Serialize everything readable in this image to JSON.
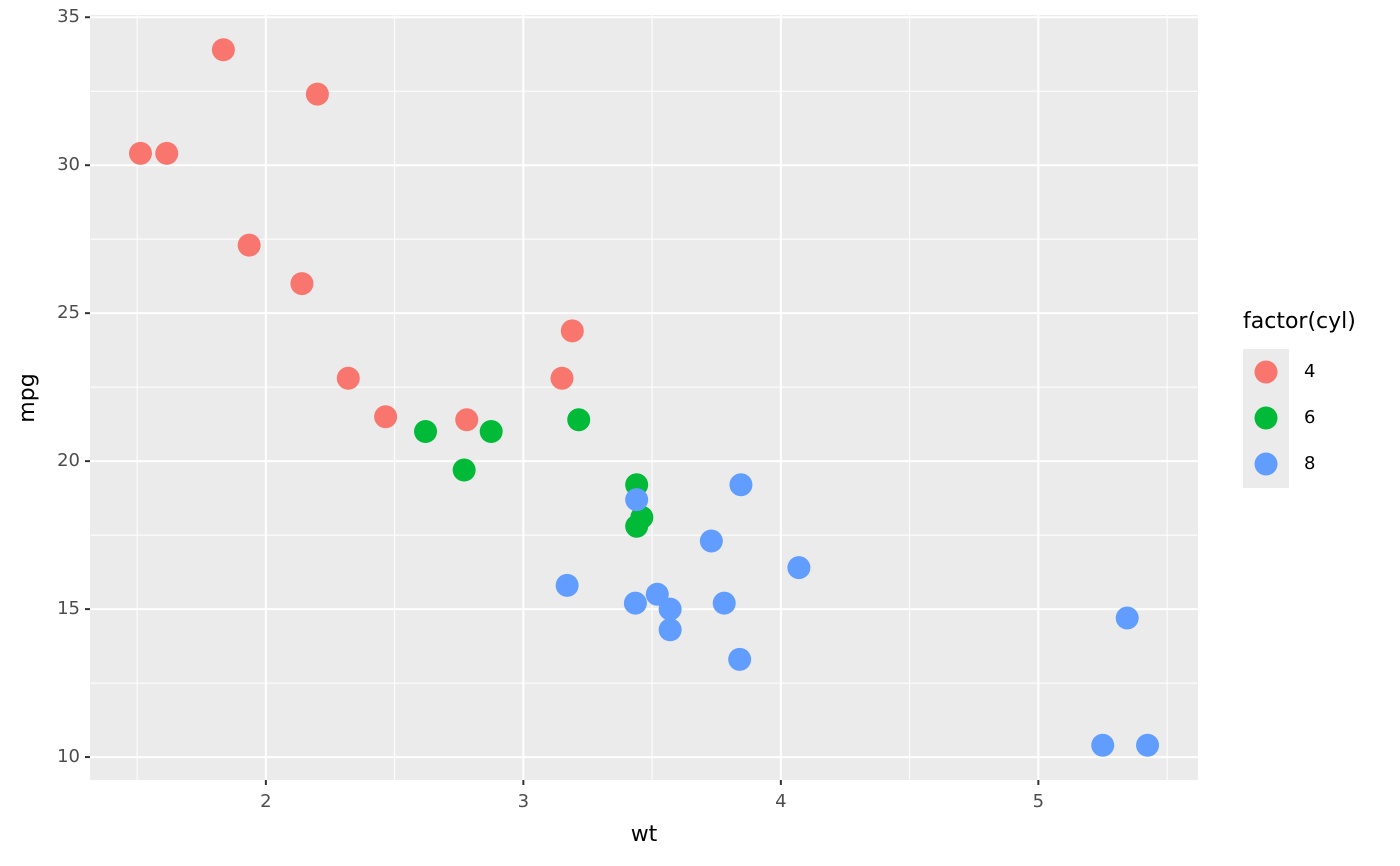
{
  "chart_data": {
    "type": "scatter",
    "x_label": "wt",
    "y_label": "mpg",
    "legend_title": "factor(cyl)",
    "xlim": [
      1.317,
      5.62
    ],
    "ylim": [
      9.225,
      35.075
    ],
    "xticks": [
      2,
      3,
      4,
      5
    ],
    "yticks": [
      10,
      15,
      20,
      25,
      30,
      35
    ],
    "xminor": [
      1.5,
      2.5,
      3.5,
      4.5,
      5.5
    ],
    "yminor": [
      12.5,
      17.5,
      22.5,
      27.5,
      32.5
    ],
    "grid": true,
    "legend": "right",
    "series": [
      {
        "name": "4",
        "color": "#F8766D",
        "x": [
          2.32,
          3.19,
          3.15,
          2.2,
          1.615,
          1.835,
          2.465,
          1.935,
          2.14,
          1.513,
          2.78
        ],
        "values": [
          22.8,
          24.4,
          22.8,
          32.4,
          30.4,
          33.9,
          21.5,
          27.3,
          26.0,
          30.4,
          21.4
        ]
      },
      {
        "name": "6",
        "color": "#00BA38",
        "x": [
          2.62,
          2.875,
          3.215,
          3.46,
          3.44,
          3.44,
          2.77
        ],
        "values": [
          21.0,
          21.0,
          21.4,
          18.1,
          19.2,
          17.8,
          19.7
        ]
      },
      {
        "name": "8",
        "color": "#619CFF",
        "x": [
          3.44,
          3.57,
          4.07,
          3.73,
          3.78,
          5.25,
          5.424,
          5.345,
          3.52,
          3.435,
          3.84,
          3.845,
          3.17,
          3.57
        ],
        "values": [
          18.7,
          14.3,
          16.4,
          17.3,
          15.2,
          10.4,
          10.4,
          14.7,
          15.5,
          15.2,
          13.3,
          19.2,
          15.8,
          15.0
        ]
      }
    ]
  }
}
